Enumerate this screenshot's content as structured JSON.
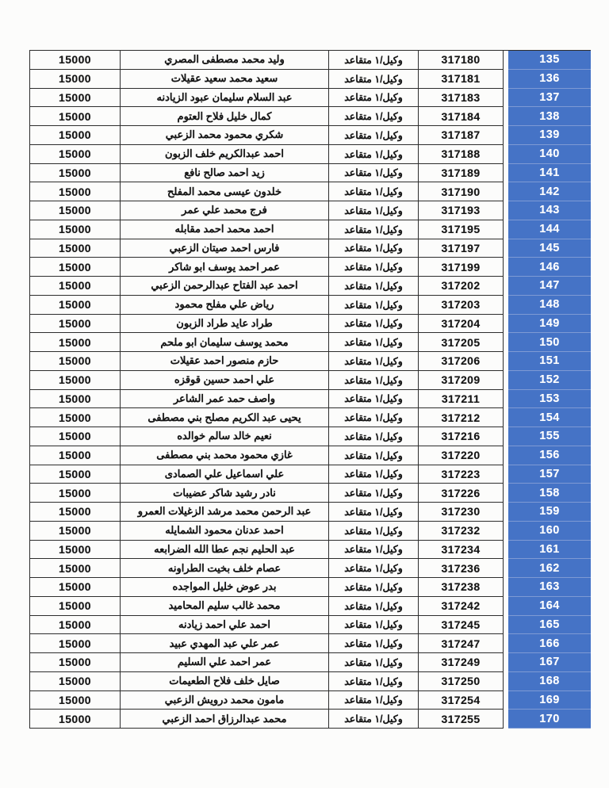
{
  "table": {
    "rank_label": "وكيل/١ متقاعد",
    "amount_value": "15000",
    "rows": [
      {
        "seq": "135",
        "reg_no": "317180",
        "name": "وليد محمد مصطفى المصري"
      },
      {
        "seq": "136",
        "reg_no": "317181",
        "name": "سعيد محمد سعيد عقيلات"
      },
      {
        "seq": "137",
        "reg_no": "317183",
        "name": "عبد السلام سليمان عبود الزيادنه"
      },
      {
        "seq": "138",
        "reg_no": "317184",
        "name": "كمال خليل فلاح العتوم"
      },
      {
        "seq": "139",
        "reg_no": "317187",
        "name": "شكري محمود محمد الزعبي"
      },
      {
        "seq": "140",
        "reg_no": "317188",
        "name": "احمد عبدالكريم خلف الزبون"
      },
      {
        "seq": "141",
        "reg_no": "317189",
        "name": "زيد احمد صالح نافع"
      },
      {
        "seq": "142",
        "reg_no": "317190",
        "name": "خلدون عيسى محمد المفلح"
      },
      {
        "seq": "143",
        "reg_no": "317193",
        "name": "فرج محمد علي عمر"
      },
      {
        "seq": "144",
        "reg_no": "317195",
        "name": "احمد محمد احمد مقابله"
      },
      {
        "seq": "145",
        "reg_no": "317197",
        "name": "فارس احمد صيتان الزعبي"
      },
      {
        "seq": "146",
        "reg_no": "317199",
        "name": "عمر احمد يوسف ابو شاكر"
      },
      {
        "seq": "147",
        "reg_no": "317202",
        "name": "احمد عبد الفتاح عبدالرحمن الزعبي"
      },
      {
        "seq": "148",
        "reg_no": "317203",
        "name": "رياض علي مفلح محمود"
      },
      {
        "seq": "149",
        "reg_no": "317204",
        "name": "طراد عايد طراد الزبون"
      },
      {
        "seq": "150",
        "reg_no": "317205",
        "name": "محمد يوسف سليمان ابو ملحم"
      },
      {
        "seq": "151",
        "reg_no": "317206",
        "name": "حازم منصور احمد عقيلات"
      },
      {
        "seq": "152",
        "reg_no": "317209",
        "name": "علي احمد حسين قوقزه"
      },
      {
        "seq": "153",
        "reg_no": "317211",
        "name": "واصف حمد عمر الشاعر"
      },
      {
        "seq": "154",
        "reg_no": "317212",
        "name": "يحيى عبد الكريم مصلح بني مصطفى"
      },
      {
        "seq": "155",
        "reg_no": "317216",
        "name": "نعيم خالد سالم خوالده"
      },
      {
        "seq": "156",
        "reg_no": "317220",
        "name": "غازي محمود محمد بني مصطفى"
      },
      {
        "seq": "157",
        "reg_no": "317223",
        "name": "علي اسماعيل علي الصمادى"
      },
      {
        "seq": "158",
        "reg_no": "317226",
        "name": "نادر رشيد شاكر عضيبات"
      },
      {
        "seq": "159",
        "reg_no": "317230",
        "name": "عبد الرحمن محمد مرشد الزغيلات العمرو"
      },
      {
        "seq": "160",
        "reg_no": "317232",
        "name": "احمد عدنان محمود الشمايله"
      },
      {
        "seq": "161",
        "reg_no": "317234",
        "name": "عبد الحليم نجم عطا الله الضرابعه"
      },
      {
        "seq": "162",
        "reg_no": "317236",
        "name": "عصام خلف بخيت الطراونه"
      },
      {
        "seq": "163",
        "reg_no": "317238",
        "name": "بدر عوض خليل المواجده"
      },
      {
        "seq": "164",
        "reg_no": "317242",
        "name": "محمد غالب سليم المحاميد"
      },
      {
        "seq": "165",
        "reg_no": "317245",
        "name": "احمد علي احمد زيادنه"
      },
      {
        "seq": "166",
        "reg_no": "317247",
        "name": "عمر علي عبد المهدي عبيد"
      },
      {
        "seq": "167",
        "reg_no": "317249",
        "name": "عمر احمد علي السليم"
      },
      {
        "seq": "168",
        "reg_no": "317250",
        "name": "صايل خلف فلاح الطعيمات"
      },
      {
        "seq": "169",
        "reg_no": "317254",
        "name": "مامون محمد درويش الزعبي"
      },
      {
        "seq": "170",
        "reg_no": "317255",
        "name": "محمد عبدالرزاق احمد الزعبي"
      }
    ]
  },
  "colors": {
    "sequence_column_bg": "#4573c6",
    "sequence_column_separator": "#7e9ad4",
    "sequence_text": "#ffffff",
    "cell_border": "#2d2d2d",
    "page_background": "#fcfcfb"
  }
}
